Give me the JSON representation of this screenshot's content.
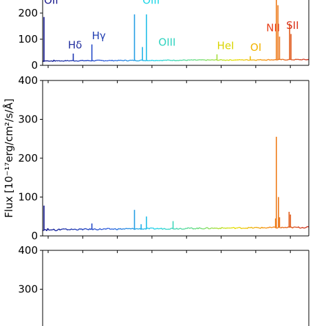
{
  "figure": {
    "ylabel": "Flux [10⁻¹⁷erg/cm²/s/Å]"
  },
  "chart_data": [
    {
      "type": "line",
      "panel": "top",
      "ylim": [
        0,
        250
      ],
      "ytick_labels": [
        "0",
        "100",
        "200"
      ],
      "grid": false,
      "continuum": {
        "start": 17,
        "end": 22
      },
      "lines": [
        {
          "x": 0.005,
          "value": 185
        },
        {
          "x": 0.115,
          "value": 45
        },
        {
          "x": 0.185,
          "value": 80
        },
        {
          "x": 0.345,
          "value": 195
        },
        {
          "x": 0.375,
          "value": 70
        },
        {
          "x": 0.39,
          "value": 195
        },
        {
          "x": 0.655,
          "value": 42
        },
        {
          "x": 0.78,
          "value": 35
        },
        {
          "x": 0.878,
          "value": 250
        },
        {
          "x": 0.884,
          "value": 230
        },
        {
          "x": 0.89,
          "value": 110
        },
        {
          "x": 0.928,
          "value": 160
        },
        {
          "x": 0.933,
          "value": 120
        }
      ],
      "annotations": [
        {
          "text": "OII",
          "x": 0.0,
          "value": 235,
          "color": "#1a1a8c"
        },
        {
          "text": "Hδ",
          "x": 0.09,
          "value": 65,
          "color": "#1f2c9e"
        },
        {
          "text": "Hγ",
          "x": 0.18,
          "value": 100,
          "color": "#1f3db0"
        },
        {
          "text": "OIII",
          "x": 0.37,
          "value": 235,
          "color": "#1fd6e6"
        },
        {
          "text": "OIII",
          "x": 0.43,
          "value": 75,
          "color": "#2fd3c0"
        },
        {
          "text": "HeI",
          "x": 0.65,
          "value": 62,
          "color": "#d9d400"
        },
        {
          "text": "OI",
          "x": 0.775,
          "value": 55,
          "color": "#f2b300"
        },
        {
          "text": "NII",
          "x": 0.835,
          "value": 130,
          "color": "#e8401a"
        },
        {
          "text": "SII",
          "x": 0.91,
          "value": 140,
          "color": "#d9301a"
        }
      ]
    },
    {
      "type": "line",
      "panel": "middle",
      "ylim": [
        0,
        400
      ],
      "ytick_labels": [
        "0",
        "100",
        "200",
        "300",
        "400"
      ],
      "grid": false,
      "continuum": {
        "start": 16,
        "end": 22
      },
      "lines": [
        {
          "x": 0.005,
          "value": 78
        },
        {
          "x": 0.185,
          "value": 32
        },
        {
          "x": 0.345,
          "value": 67
        },
        {
          "x": 0.37,
          "value": 30
        },
        {
          "x": 0.39,
          "value": 50
        },
        {
          "x": 0.49,
          "value": 38
        },
        {
          "x": 0.875,
          "value": 45
        },
        {
          "x": 0.878,
          "value": 255
        },
        {
          "x": 0.886,
          "value": 100
        },
        {
          "x": 0.89,
          "value": 48
        },
        {
          "x": 0.926,
          "value": 62
        },
        {
          "x": 0.931,
          "value": 55
        }
      ]
    },
    {
      "type": "line",
      "panel": "bottom",
      "ylim": [
        0,
        400
      ],
      "ytick_labels": [
        "300",
        "400"
      ],
      "grid": false,
      "lines": []
    }
  ]
}
